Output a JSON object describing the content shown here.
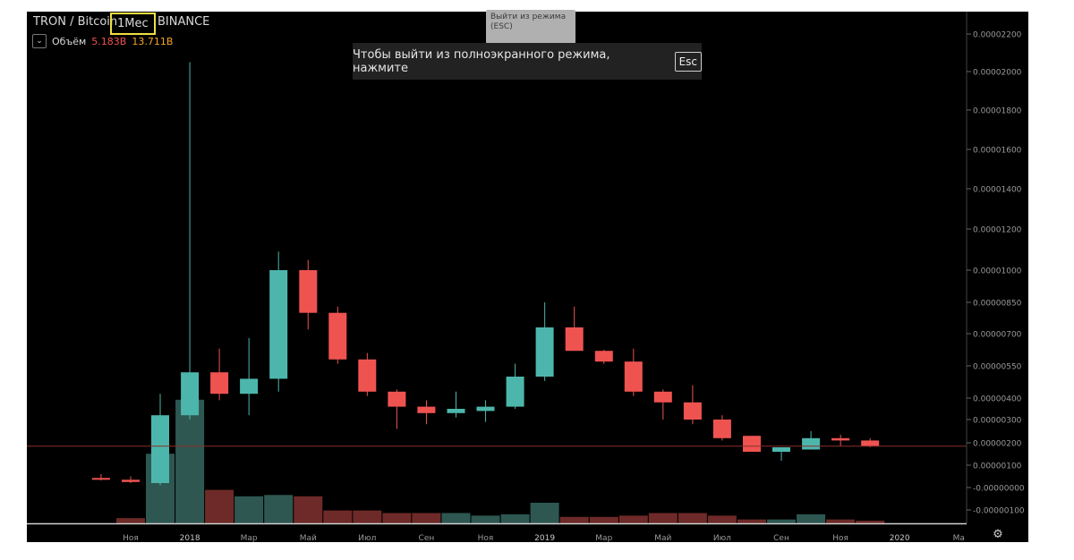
{
  "header": {
    "symbol": "TRON / Bitcoin",
    "interval": "1Мес",
    "exchange": "BINANCE"
  },
  "volume_legend": {
    "label": "Объём",
    "value_1": "5.183B",
    "value_2": "13.711B"
  },
  "tooltip": {
    "text": "Выйти из режима (ESC)"
  },
  "fullscreen_notice": {
    "text": "Чтобы выйти из полноэкранного режима, нажмите",
    "key": "Esc"
  },
  "colors": {
    "up": "#4db6ac",
    "down": "#ef5350",
    "vol_up": "#2e5751",
    "vol_down": "#6e2a28",
    "price_line": "#8b2e2a",
    "axis_text": "#9a9a9a"
  },
  "chart_data": {
    "type": "candlestick",
    "candles": [
      {
        "t": "2017-10",
        "o": 4.3e-07,
        "h": 6e-07,
        "l": 3.2e-07,
        "c": 4e-07
      },
      {
        "t": "2017-11",
        "o": 3.5e-07,
        "h": 5e-07,
        "l": 2e-07,
        "c": 2.5e-07
      },
      {
        "t": "2017-12",
        "o": 2e-07,
        "h": 4.2e-06,
        "l": 1e-07,
        "c": 3.2e-06
      },
      {
        "t": "2018-01",
        "o": 3.2e-06,
        "h": 2.05e-05,
        "l": 3e-06,
        "c": 5.2e-06
      },
      {
        "t": "2018-02",
        "o": 5.2e-06,
        "h": 6.3e-06,
        "l": 3.9e-06,
        "c": 4.2e-06
      },
      {
        "t": "2018-03",
        "o": 4.2e-06,
        "h": 6.8e-06,
        "l": 3.2e-06,
        "c": 4.9e-06
      },
      {
        "t": "2018-04",
        "o": 4.9e-06,
        "h": 1.09e-05,
        "l": 4.3e-06,
        "c": 1e-05
      },
      {
        "t": "2018-05",
        "o": 1e-05,
        "h": 1.05e-05,
        "l": 7.2e-06,
        "c": 8e-06
      },
      {
        "t": "2018-06",
        "o": 8e-06,
        "h": 8.3e-06,
        "l": 5.6e-06,
        "c": 5.8e-06
      },
      {
        "t": "2018-07",
        "o": 5.8e-06,
        "h": 6.1e-06,
        "l": 4.1e-06,
        "c": 4.3e-06
      },
      {
        "t": "2018-08",
        "o": 4.3e-06,
        "h": 4.4e-06,
        "l": 2.6e-06,
        "c": 3.6e-06
      },
      {
        "t": "2018-09",
        "o": 3.6e-06,
        "h": 3.9e-06,
        "l": 2.8e-06,
        "c": 3.3e-06
      },
      {
        "t": "2018-10",
        "o": 3.3e-06,
        "h": 4.3e-06,
        "l": 3.1e-06,
        "c": 3.5e-06
      },
      {
        "t": "2018-11",
        "o": 3.4e-06,
        "h": 3.9e-06,
        "l": 2.9e-06,
        "c": 3.6e-06
      },
      {
        "t": "2018-12",
        "o": 3.6e-06,
        "h": 5.6e-06,
        "l": 3.5e-06,
        "c": 5e-06
      },
      {
        "t": "2019-01",
        "o": 5e-06,
        "h": 8.5e-06,
        "l": 4.8e-06,
        "c": 7.3e-06
      },
      {
        "t": "2019-02",
        "o": 7.3e-06,
        "h": 8.3e-06,
        "l": 6.2e-06,
        "c": 6.2e-06
      },
      {
        "t": "2019-03",
        "o": 6.2e-06,
        "h": 6.25e-06,
        "l": 5.6e-06,
        "c": 5.7e-06
      },
      {
        "t": "2019-04",
        "o": 5.7e-06,
        "h": 6.3e-06,
        "l": 4.1e-06,
        "c": 4.3e-06
      },
      {
        "t": "2019-05",
        "o": 4.3e-06,
        "h": 4.4e-06,
        "l": 3e-06,
        "c": 3.8e-06
      },
      {
        "t": "2019-06",
        "o": 3.8e-06,
        "h": 4.6e-06,
        "l": 2.8e-06,
        "c": 3e-06
      },
      {
        "t": "2019-07",
        "o": 3e-06,
        "h": 3.2e-06,
        "l": 2.1e-06,
        "c": 2.2e-06
      },
      {
        "t": "2019-08",
        "o": 2.3e-06,
        "h": 2.3e-06,
        "l": 1.6e-06,
        "c": 1.6e-06
      },
      {
        "t": "2019-09",
        "o": 1.6e-06,
        "h": 1.8e-06,
        "l": 1.2e-06,
        "c": 1.8e-06
      },
      {
        "t": "2019-10",
        "o": 1.7e-06,
        "h": 2.5e-06,
        "l": 1.7e-06,
        "c": 2.2e-06
      },
      {
        "t": "2019-11",
        "o": 2.2e-06,
        "h": 2.35e-06,
        "l": 1.85e-06,
        "c": 2.1e-06
      },
      {
        "t": "2019-12",
        "o": 2.1e-06,
        "h": 2.2e-06,
        "l": 1.8e-06,
        "c": 1.85e-06
      }
    ],
    "volume": [
      {
        "t": "2017-11",
        "v": 0.4,
        "dir": "down"
      },
      {
        "t": "2017-12",
        "v": 5.4,
        "dir": "up"
      },
      {
        "t": "2018-01",
        "v": 9.6,
        "dir": "up"
      },
      {
        "t": "2018-02",
        "v": 2.6,
        "dir": "down"
      },
      {
        "t": "2018-03",
        "v": 2.1,
        "dir": "up"
      },
      {
        "t": "2018-04",
        "v": 2.2,
        "dir": "up"
      },
      {
        "t": "2018-05",
        "v": 2.1,
        "dir": "down"
      },
      {
        "t": "2018-06",
        "v": 1.0,
        "dir": "down"
      },
      {
        "t": "2018-07",
        "v": 1.0,
        "dir": "down"
      },
      {
        "t": "2018-08",
        "v": 0.8,
        "dir": "down"
      },
      {
        "t": "2018-09",
        "v": 0.8,
        "dir": "down"
      },
      {
        "t": "2018-10",
        "v": 0.8,
        "dir": "up"
      },
      {
        "t": "2018-11",
        "v": 0.6,
        "dir": "up"
      },
      {
        "t": "2018-12",
        "v": 0.7,
        "dir": "up"
      },
      {
        "t": "2019-01",
        "v": 1.6,
        "dir": "up"
      },
      {
        "t": "2019-02",
        "v": 0.5,
        "dir": "down"
      },
      {
        "t": "2019-03",
        "v": 0.5,
        "dir": "down"
      },
      {
        "t": "2019-04",
        "v": 0.6,
        "dir": "down"
      },
      {
        "t": "2019-05",
        "v": 0.8,
        "dir": "down"
      },
      {
        "t": "2019-06",
        "v": 0.8,
        "dir": "down"
      },
      {
        "t": "2019-07",
        "v": 0.6,
        "dir": "down"
      },
      {
        "t": "2019-08",
        "v": 0.3,
        "dir": "down"
      },
      {
        "t": "2019-09",
        "v": 0.3,
        "dir": "up"
      },
      {
        "t": "2019-10",
        "v": 0.7,
        "dir": "up"
      },
      {
        "t": "2019-11",
        "v": 0.3,
        "dir": "down"
      },
      {
        "t": "2019-12",
        "v": 0.2,
        "dir": "down"
      }
    ],
    "y_ticks": [
      "0.00002200",
      "0.00002000",
      "0.00001800",
      "0.00001600",
      "0.00001400",
      "0.00001200",
      "0.00001000",
      "0.00000850",
      "0.00000700",
      "0.00000550",
      "0.00000400",
      "0.00000300",
      "0.00000200",
      "0.00000100",
      "-0.00000000",
      "-0.00000100"
    ],
    "x_ticks": [
      {
        "t": "2017-11",
        "label": "Ноя",
        "bold": false
      },
      {
        "t": "2018-01",
        "label": "2018",
        "bold": true
      },
      {
        "t": "2018-03",
        "label": "Мар",
        "bold": false
      },
      {
        "t": "2018-05",
        "label": "Май",
        "bold": false
      },
      {
        "t": "2018-07",
        "label": "Июл",
        "bold": false
      },
      {
        "t": "2018-09",
        "label": "Сен",
        "bold": false
      },
      {
        "t": "2018-11",
        "label": "Ноя",
        "bold": false
      },
      {
        "t": "2019-01",
        "label": "2019",
        "bold": true
      },
      {
        "t": "2019-03",
        "label": "Мар",
        "bold": false
      },
      {
        "t": "2019-05",
        "label": "Май",
        "bold": false
      },
      {
        "t": "2019-07",
        "label": "Июл",
        "bold": false
      },
      {
        "t": "2019-09",
        "label": "Сен",
        "bold": false
      },
      {
        "t": "2019-11",
        "label": "Ноя",
        "bold": false
      },
      {
        "t": "2020-01",
        "label": "2020",
        "bold": true
      },
      {
        "t": "2020-03",
        "label": "Ма",
        "bold": false
      }
    ],
    "current_price": 1.85e-06,
    "grid": false
  }
}
